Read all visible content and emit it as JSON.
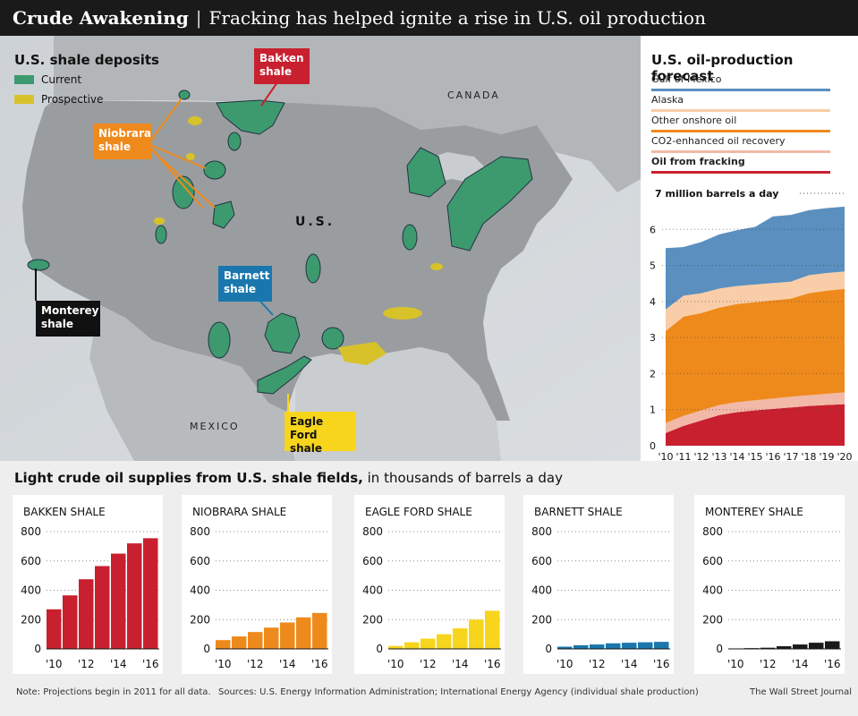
{
  "header": {
    "title_bold": "Crude Awakening",
    "separator": "|",
    "subtitle": "Fracking has helped ignite a rise in U.S. oil production"
  },
  "map": {
    "legend_title": "U.S. shale deposits",
    "legend": [
      {
        "label": "Current",
        "color": "#3d9a6e"
      },
      {
        "label": "Prospective",
        "color": "#d8c22a"
      }
    ],
    "countries": {
      "canada": "CANADA",
      "us": "U.S.",
      "mexico": "MEXICO"
    },
    "callouts": {
      "bakken": {
        "line1": "Bakken",
        "line2": "shale",
        "color": "#c8202f"
      },
      "niobrara": {
        "line1": "Niobrara",
        "line2": "shale",
        "color": "#ee8a1c"
      },
      "barnett": {
        "line1": "Barnett",
        "line2": "shale",
        "color": "#1a77ad"
      },
      "monterey": {
        "line1": "Monterey",
        "line2": "shale",
        "color": "#111111"
      },
      "eagleford": {
        "line1": "Eagle Ford",
        "line2": "shale",
        "color": "#f7d51c"
      }
    }
  },
  "chart_data": [
    {
      "type": "area",
      "title": "U.S. oil-production forecast",
      "unit_label": "7 million barrels a day",
      "x": [
        "'10",
        "'11",
        "'12",
        "'13",
        "'14",
        "'15",
        "'16",
        "'17",
        "'18",
        "'19",
        "'20"
      ],
      "ylim": [
        0,
        7
      ],
      "yticks": [
        0,
        1,
        2,
        3,
        4,
        5,
        6
      ],
      "series": [
        {
          "name": "Oil from fracking",
          "color": "#c8202f",
          "values": [
            0.35,
            0.55,
            0.7,
            0.85,
            0.93,
            0.98,
            1.02,
            1.06,
            1.1,
            1.13,
            1.15
          ]
        },
        {
          "name": "CO2-enhanced oil recovery",
          "color": "#f2b8a8",
          "values": [
            0.28,
            0.28,
            0.28,
            0.28,
            0.28,
            0.28,
            0.29,
            0.3,
            0.3,
            0.31,
            0.33
          ]
        },
        {
          "name": "Other onshore oil",
          "color": "#ee8a1c",
          "values": [
            2.55,
            2.75,
            2.7,
            2.7,
            2.72,
            2.72,
            2.72,
            2.72,
            2.83,
            2.86,
            2.87
          ]
        },
        {
          "name": "Alaska",
          "color": "#f9cda7",
          "values": [
            0.6,
            0.58,
            0.55,
            0.53,
            0.5,
            0.49,
            0.48,
            0.47,
            0.5,
            0.49,
            0.48
          ]
        },
        {
          "name": "Gulf of Mexico",
          "color": "#5a8fbf",
          "values": [
            1.7,
            1.35,
            1.42,
            1.5,
            1.55,
            1.6,
            1.85,
            1.85,
            1.8,
            1.8,
            1.8
          ]
        }
      ],
      "legend_order": [
        "Gulf of Mexico",
        "Alaska",
        "Other onshore oil",
        "CO2-enhanced oil recovery",
        "Oil from fracking"
      ]
    },
    {
      "type": "bar",
      "title": "BAKKEN SHALE",
      "color": "#c8202f",
      "x": [
        "'10",
        "'11",
        "'12",
        "'13",
        "'14",
        "'15",
        "'16"
      ],
      "values": [
        270,
        365,
        475,
        565,
        650,
        720,
        755
      ],
      "ylim": [
        0,
        800
      ],
      "yticks": [
        0,
        200,
        400,
        600,
        800
      ]
    },
    {
      "type": "bar",
      "title": "NIOBRARA SHALE",
      "color": "#ee8a1c",
      "x": [
        "'10",
        "'11",
        "'12",
        "'13",
        "'14",
        "'15",
        "'16"
      ],
      "values": [
        60,
        85,
        115,
        145,
        180,
        215,
        245
      ],
      "ylim": [
        0,
        800
      ],
      "yticks": [
        0,
        200,
        400,
        600,
        800
      ]
    },
    {
      "type": "bar",
      "title": "EAGLE FORD SHALE",
      "color": "#f7d51c",
      "x": [
        "'10",
        "'11",
        "'12",
        "'13",
        "'14",
        "'15",
        "'16"
      ],
      "values": [
        20,
        45,
        70,
        100,
        140,
        200,
        260
      ],
      "ylim": [
        0,
        800
      ],
      "yticks": [
        0,
        200,
        400,
        600,
        800
      ]
    },
    {
      "type": "bar",
      "title": "BARNETT SHALE",
      "color": "#1a77ad",
      "x": [
        "'10",
        "'11",
        "'12",
        "'13",
        "'14",
        "'15",
        "'16"
      ],
      "values": [
        15,
        25,
        30,
        38,
        42,
        45,
        48
      ],
      "ylim": [
        0,
        800
      ],
      "yticks": [
        0,
        200,
        400,
        600,
        800
      ]
    },
    {
      "type": "bar",
      "title": "MONTEREY SHALE",
      "color": "#1a1a1a",
      "x": [
        "'10",
        "'11",
        "'12",
        "'13",
        "'14",
        "'15",
        "'16"
      ],
      "values": [
        2,
        5,
        8,
        18,
        30,
        42,
        52
      ],
      "ylim": [
        0,
        800
      ],
      "yticks": [
        0,
        200,
        400,
        600,
        800
      ]
    }
  ],
  "section2": {
    "title_bold": "Light crude oil supplies from U.S. shale fields,",
    "title_rest": " in thousands of barrels a day"
  },
  "footer": {
    "note": "Note: Projections begin in 2011 for all data.",
    "sources": "Sources: U.S. Energy Information Administration; International Energy Agency (individual shale production)",
    "credit": "The Wall Street Journal"
  }
}
